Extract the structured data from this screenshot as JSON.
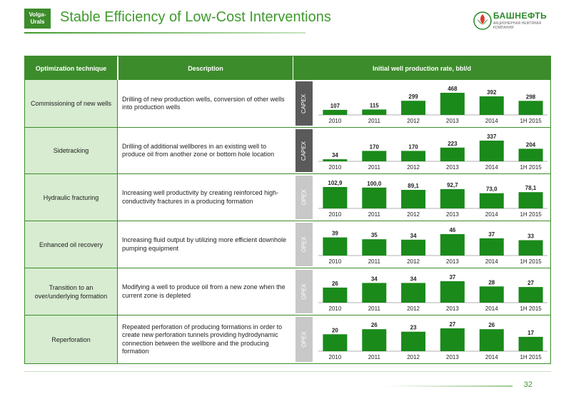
{
  "header": {
    "badge": "Volga-\nUrals",
    "title": "Stable Efficiency of Low-Cost Interventions",
    "logo_text": "БАШНЕФТЬ",
    "logo_sub": "АКЦИОНЕРНАЯ НЕФТЯНАЯ КОМПАНИЯ"
  },
  "table": {
    "col_headers": [
      "Optimization technique",
      "Description",
      "Initial well production rate, bbl/d"
    ],
    "rows": [
      {
        "technique": "Commissioning of new wells",
        "description": "Drilling of new production wells, conversion of other wells into production wells",
        "tag": "CAPEX"
      },
      {
        "technique": "Sidetracking",
        "description": "Drilling of additional wellbores in an existing well to produce oil from another zone or bottom hole location",
        "tag": "CAPEX"
      },
      {
        "technique": "Hydraulic fracturing",
        "description": "Increasing well productivity by creating reinforced high-conductivity fractures in a producing formation",
        "tag": "OPEX"
      },
      {
        "technique": "Enhanced oil recovery",
        "description": "Increasing fluid output by utilizing more efficient downhole pumping equipment",
        "tag": "OPEX"
      },
      {
        "technique": "Transition to an over/underlying formation",
        "description": "Modifying a well to produce oil from a new zone when the current zone is depleted",
        "tag": "OPEX"
      },
      {
        "technique": "Reperforation",
        "description": "Repeated perforation of producing formations in order to create new perforation tunnels providing hydrodynamic connection between the wellbore and the producing formation",
        "tag": "OPEX"
      }
    ]
  },
  "chart_data": [
    {
      "type": "bar",
      "categories": [
        "2010",
        "2011",
        "2012",
        "2013",
        "2014",
        "1H 2015"
      ],
      "values": [
        107,
        115,
        299,
        468,
        392,
        298
      ],
      "labels": [
        "107",
        "115",
        "299",
        "468",
        "392",
        "298"
      ],
      "color": "#1a8a1a"
    },
    {
      "type": "bar",
      "categories": [
        "2010",
        "2011",
        "2012",
        "2013",
        "2014",
        "1H 2015"
      ],
      "values": [
        34,
        170,
        170,
        223,
        337,
        204
      ],
      "labels": [
        "34",
        "170",
        "170",
        "223",
        "337",
        "204"
      ],
      "color": "#1a8a1a"
    },
    {
      "type": "bar",
      "categories": [
        "2010",
        "2011",
        "2012",
        "2013",
        "2014",
        "1H 2015"
      ],
      "values": [
        102.9,
        100.0,
        89.1,
        92.7,
        73.0,
        78.1
      ],
      "labels": [
        "102,9",
        "100,0",
        "89,1",
        "92,7",
        "73,0",
        "78,1"
      ],
      "color": "#1a8a1a"
    },
    {
      "type": "bar",
      "categories": [
        "2010",
        "2011",
        "2012",
        "2013",
        "2014",
        "1H 2015"
      ],
      "values": [
        39,
        35,
        34,
        46,
        37,
        33
      ],
      "labels": [
        "39",
        "35",
        "34",
        "46",
        "37",
        "33"
      ],
      "color": "#1a8a1a"
    },
    {
      "type": "bar",
      "categories": [
        "2010",
        "2011",
        "2012",
        "2013",
        "2014",
        "1H 2015"
      ],
      "values": [
        26,
        34,
        34,
        37,
        28,
        27
      ],
      "labels": [
        "26",
        "34",
        "34",
        "37",
        "28",
        "27"
      ],
      "color": "#1a8a1a"
    },
    {
      "type": "bar",
      "categories": [
        "2010",
        "2011",
        "2012",
        "2013",
        "2014",
        "1H 2015"
      ],
      "values": [
        20,
        26,
        23,
        27,
        26,
        17
      ],
      "labels": [
        "20",
        "26",
        "23",
        "27",
        "26",
        "17"
      ],
      "color": "#1a8a1a"
    }
  ],
  "footer": {
    "page_number": "32"
  }
}
